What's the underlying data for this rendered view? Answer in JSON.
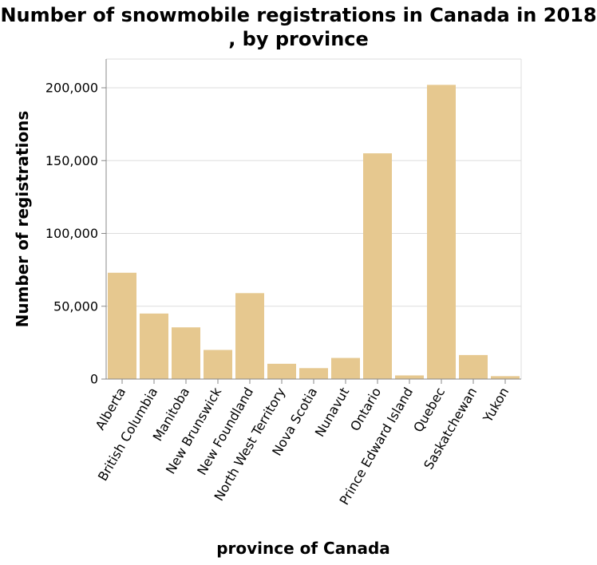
{
  "chart_data": {
    "type": "bar",
    "title": "Number of snowmobile registrations in Canada in 2018 , by province",
    "xlabel": "province of Canada",
    "ylabel": "Number of registrations",
    "categories": [
      "Alberta",
      "British Columbia",
      "Manitoba",
      "New Brunswick",
      "New Foundland",
      "North West Territory",
      "Nova Scotia",
      "Nunavut",
      "Ontario",
      "Prince Edward Island",
      "Quebec",
      "Saskatchewan",
      "Yukon"
    ],
    "values": [
      73000,
      45000,
      35500,
      20000,
      59000,
      10500,
      7500,
      14500,
      155000,
      2500,
      202000,
      16500,
      2000
    ],
    "ylim": [
      0,
      200000
    ],
    "yticks": [
      0,
      50000,
      100000,
      150000,
      200000
    ],
    "ytick_labels": [
      "0",
      "50,000",
      "100,000",
      "150,000",
      "200,000"
    ],
    "grid": true,
    "bar_color": "#e6c88f"
  }
}
